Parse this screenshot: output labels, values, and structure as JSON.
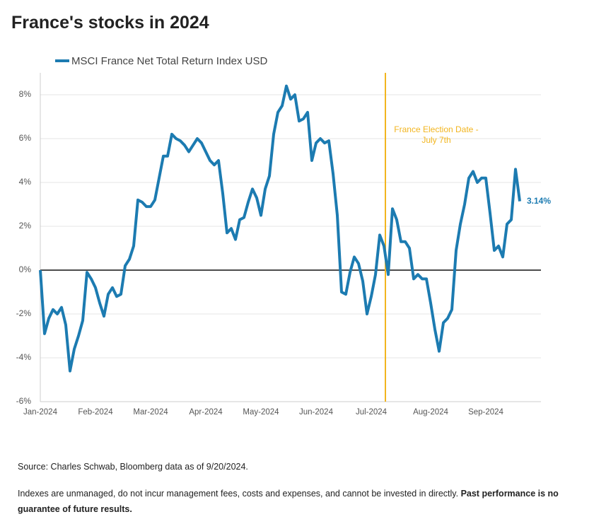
{
  "chart_data": {
    "type": "line",
    "title": "France's stocks in 2024",
    "categories": [
      "Jan-2024",
      null,
      null,
      null,
      null,
      null,
      null,
      null,
      null,
      null,
      null,
      null,
      null,
      "Feb-2024",
      null,
      null,
      null,
      null,
      null,
      null,
      null,
      null,
      null,
      null,
      null,
      null,
      "Mar-2024",
      null,
      null,
      null,
      null,
      null,
      null,
      null,
      null,
      null,
      null,
      null,
      null,
      "Apr-2024",
      null,
      null,
      null,
      null,
      null,
      null,
      null,
      null,
      null,
      null,
      null,
      null,
      "May-2024",
      null,
      null,
      null,
      null,
      null,
      null,
      null,
      null,
      null,
      null,
      null,
      null,
      "Jun-2024",
      null,
      null,
      null,
      null,
      null,
      null,
      null,
      null,
      null,
      null,
      null,
      null,
      "Jul-2024",
      null,
      null,
      null,
      null,
      null,
      null,
      null,
      null,
      null,
      null,
      null,
      null,
      null,
      "Aug-2024",
      null,
      null,
      null,
      null,
      null,
      null,
      null,
      null,
      null,
      null,
      null,
      null,
      "Sep-2024",
      null,
      null,
      null,
      null,
      null,
      null,
      null,
      null
    ],
    "series": [
      {
        "name": "MSCI France Net Total Return Index USD",
        "color": "#1c7bb1",
        "values": [
          0,
          -2.9,
          -2.2,
          -1.8,
          -2.0,
          -1.7,
          -2.5,
          -4.6,
          -3.6,
          -3.0,
          -2.3,
          -0.1,
          -0.4,
          -0.8,
          -1.5,
          -2.1,
          -1.1,
          -0.8,
          -1.2,
          -1.1,
          0.2,
          0.5,
          1.1,
          3.2,
          3.1,
          2.9,
          2.9,
          3.2,
          4.2,
          5.2,
          5.2,
          6.2,
          6.0,
          5.9,
          5.7,
          5.4,
          5.7,
          6.0,
          5.8,
          5.4,
          5.0,
          4.8,
          5.0,
          3.5,
          1.7,
          1.9,
          1.4,
          2.3,
          2.4,
          3.1,
          3.7,
          3.3,
          2.5,
          3.7,
          4.3,
          6.2,
          7.2,
          7.5,
          8.4,
          7.8,
          8.0,
          6.8,
          6.9,
          7.2,
          5.0,
          5.8,
          6.0,
          5.8,
          5.9,
          4.4,
          2.5,
          -1.0,
          -1.1,
          -0.1,
          0.6,
          0.3,
          -0.5,
          -2.0,
          -1.2,
          -0.2,
          1.6,
          1.1,
          -0.2,
          2.8,
          2.3,
          1.3,
          1.3,
          1.0,
          -0.4,
          -0.2,
          -0.4,
          -0.4,
          -1.5,
          -2.7,
          -3.7,
          -2.4,
          -2.2,
          -1.8,
          0.9,
          2.1,
          3.0,
          4.2,
          4.5,
          4.0,
          4.2,
          4.2,
          2.6,
          0.9,
          1.1,
          0.6,
          2.1,
          2.3,
          4.6,
          3.14
        ],
        "value_labels": [
          null,
          null,
          null,
          null,
          null,
          null,
          null,
          null,
          null,
          null,
          null,
          null,
          null,
          null,
          null,
          null,
          null,
          null,
          null,
          null,
          null,
          null,
          null,
          null,
          null,
          null,
          null,
          null,
          null,
          null,
          null,
          null,
          null,
          null,
          null,
          null,
          null,
          null,
          null,
          null,
          null,
          null,
          null,
          null,
          null,
          null,
          null,
          null,
          null,
          null,
          null,
          null,
          null,
          null,
          null,
          null,
          null,
          null,
          null,
          null,
          null,
          null,
          null,
          null,
          null,
          null,
          null,
          null,
          null,
          null,
          null,
          null,
          null,
          null,
          null,
          null,
          null,
          null,
          null,
          null,
          null,
          null,
          null,
          null,
          null,
          null,
          null,
          null,
          null,
          null,
          null,
          null,
          null,
          null,
          null,
          null,
          null,
          null,
          null,
          null,
          null,
          null,
          null,
          null,
          null,
          null,
          null,
          null,
          null,
          null,
          null,
          null,
          null,
          "3.14%"
        ]
      }
    ],
    "ylim": [
      -6,
      9
    ],
    "yticks": [
      {
        "value": -6,
        "label": "-6%"
      },
      {
        "value": -4,
        "label": "-4%"
      },
      {
        "value": -2,
        "label": "-2%"
      },
      {
        "value": 0,
        "label": "0%"
      },
      {
        "value": 2,
        "label": "2%"
      },
      {
        "value": 4,
        "label": "4%"
      },
      {
        "value": 6,
        "label": "6%"
      },
      {
        "value": 8,
        "label": "8%"
      }
    ],
    "grid": true,
    "legend": "top-left",
    "annotation": {
      "lines": [
        "France Election Date -",
        "July 7th"
      ],
      "color": "#f2b51f"
    }
  },
  "footer": {
    "source": "Source: Charles Schwab, Bloomberg data as of 9/20/2024.",
    "disclaimer": "Indexes are unmanaged, do not incur management fees, costs and expenses, and cannot be invested in directly.",
    "disclaimer_bold": "Past performance is no guarantee of future results."
  }
}
